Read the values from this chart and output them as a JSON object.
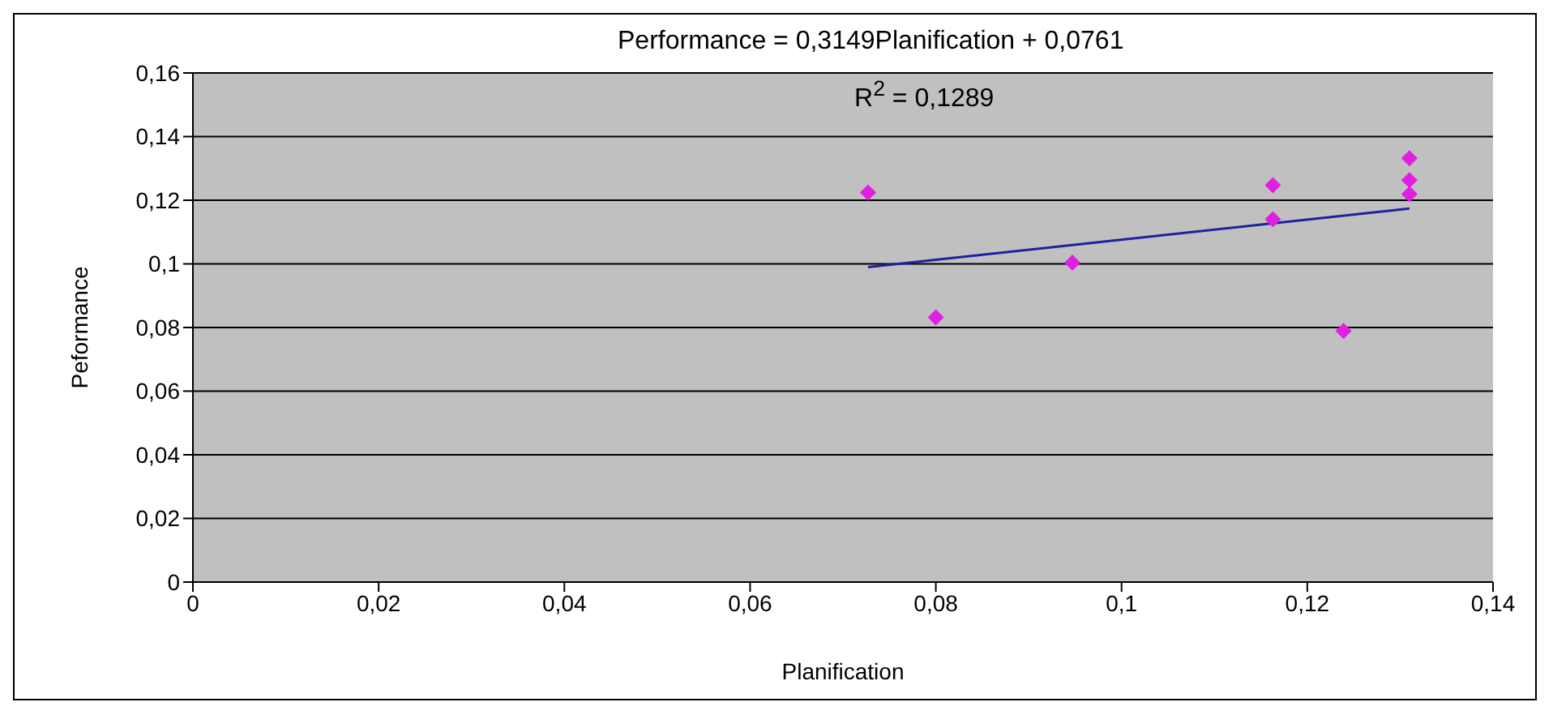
{
  "chart_data": {
    "type": "scatter",
    "xlabel": "Planification",
    "ylabel": "Peformance",
    "xlim": [
      0,
      0.14
    ],
    "xticks": [
      0,
      {
        "value": 0.02,
        "label": "0,02"
      },
      {
        "value": 0.04,
        "label": "0,04"
      },
      {
        "value": 0.06,
        "label": "0,06"
      },
      {
        "value": 0.08,
        "label": "0,08"
      },
      {
        "value": 0.1,
        "label": "0,1"
      },
      {
        "value": 0.12,
        "label": "0,12"
      },
      {
        "value": 0.14,
        "label": "0,14"
      }
    ],
    "ylim": [
      0,
      0.16
    ],
    "yticks": [
      0,
      {
        "value": 0.02,
        "label": "0,02"
      },
      {
        "value": 0.04,
        "label": "0,04"
      },
      {
        "value": 0.06,
        "label": "0,06"
      },
      {
        "value": 0.08,
        "label": "0,08"
      },
      {
        "value": 0.1,
        "label": "0,1"
      },
      {
        "value": 0.12,
        "label": "0,12"
      },
      {
        "value": 0.14,
        "label": "0,14"
      },
      {
        "value": 0.16,
        "label": "0,16"
      }
    ],
    "grid": "y",
    "marker": "diamond",
    "annotations": [
      "Performance = 0,3149Planification + 0,0761",
      "R$^{2}$ = 0,1289"
    ],
    "series": [
      {
        "color": "#e020e0",
        "x": [
          0.0727,
          0.08,
          0.0947,
          0.1163,
          0.1163,
          0.1239,
          0.131,
          0.131,
          0.131
        ],
        "values": [
          0.1224,
          0.0832,
          0.1004,
          0.1247,
          0.114,
          0.0789,
          0.1332,
          0.1263,
          0.1219
        ]
      },
      {
        "type": "line",
        "color": "#2020a0",
        "marker": "none",
        "line_style": "solid",
        "x": [
          0.0727,
          0.131
        ],
        "values": [
          0.099,
          0.1174
        ]
      }
    ]
  }
}
